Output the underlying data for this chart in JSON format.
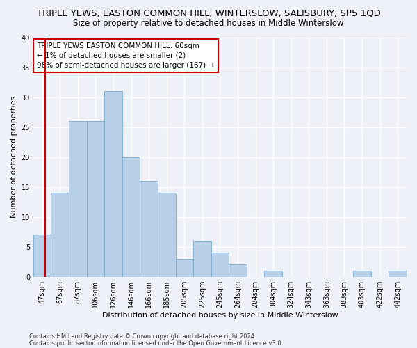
{
  "title": "TRIPLE YEWS, EASTON COMMON HILL, WINTERSLOW, SALISBURY, SP5 1QD",
  "subtitle": "Size of property relative to detached houses in Middle Winterslow",
  "xlabel": "Distribution of detached houses by size in Middle Winterslow",
  "ylabel": "Number of detached properties",
  "categories": [
    "47sqm",
    "67sqm",
    "87sqm",
    "106sqm",
    "126sqm",
    "146sqm",
    "166sqm",
    "185sqm",
    "205sqm",
    "225sqm",
    "245sqm",
    "264sqm",
    "284sqm",
    "304sqm",
    "324sqm",
    "343sqm",
    "363sqm",
    "383sqm",
    "403sqm",
    "422sqm",
    "442sqm"
  ],
  "values": [
    7,
    14,
    26,
    26,
    31,
    20,
    16,
    14,
    3,
    6,
    4,
    2,
    0,
    1,
    0,
    0,
    0,
    0,
    1,
    0,
    1
  ],
  "bar_color": "#b8d0e8",
  "bar_edge_color": "#7aaace",
  "highlight_color": "#cc0000",
  "red_line_x": 0.65,
  "ylim": [
    0,
    40
  ],
  "yticks": [
    0,
    5,
    10,
    15,
    20,
    25,
    30,
    35,
    40
  ],
  "annotation_text": "TRIPLE YEWS EASTON COMMON HILL: 60sqm\n← 1% of detached houses are smaller (2)\n98% of semi-detached houses are larger (167) →",
  "annotation_box_color": "#ffffff",
  "annotation_box_edge_color": "#cc0000",
  "footnote1": "Contains HM Land Registry data © Crown copyright and database right 2024.",
  "footnote2": "Contains public sector information licensed under the Open Government Licence v3.0.",
  "background_color": "#eef2f8",
  "grid_color": "#ffffff",
  "title_fontsize": 9.5,
  "subtitle_fontsize": 8.5,
  "xlabel_fontsize": 8,
  "ylabel_fontsize": 8,
  "tick_fontsize": 7,
  "annotation_fontsize": 7.5,
  "footnote_fontsize": 6
}
